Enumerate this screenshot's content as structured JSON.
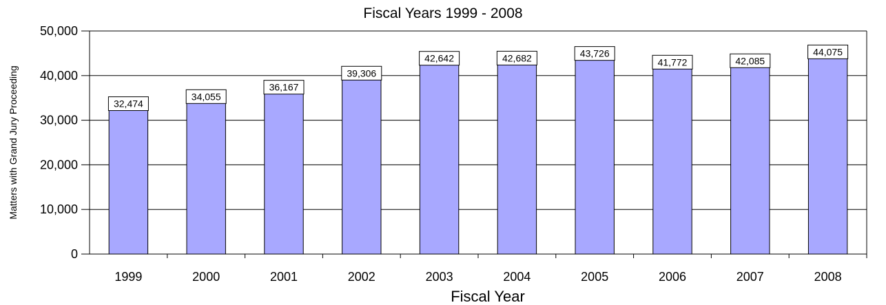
{
  "chart_data": {
    "type": "bar",
    "title": "Fiscal Years 1999 - 2008",
    "xlabel": "Fiscal Year",
    "ylabel": "Matters with Grand Jury Proceeding",
    "categories": [
      "1999",
      "2000",
      "2001",
      "2002",
      "2003",
      "2004",
      "2005",
      "2006",
      "2007",
      "2008"
    ],
    "values": [
      32474,
      34055,
      36167,
      39306,
      42642,
      42682,
      43726,
      41772,
      42085,
      44075
    ],
    "data_labels": [
      "32,474",
      "34,055",
      "36,167",
      "39,306",
      "42,642",
      "42,682",
      "43,726",
      "41,772",
      "42,085",
      "44,075"
    ],
    "ylim": [
      0,
      50000
    ],
    "yticks": [
      0,
      10000,
      20000,
      30000,
      40000,
      50000
    ],
    "ytick_labels": [
      "0",
      "10,000",
      "20,000",
      "30,000",
      "40,000",
      "50,000"
    ],
    "grid": true,
    "bar_color": "#a8a8ff",
    "legend": null
  }
}
